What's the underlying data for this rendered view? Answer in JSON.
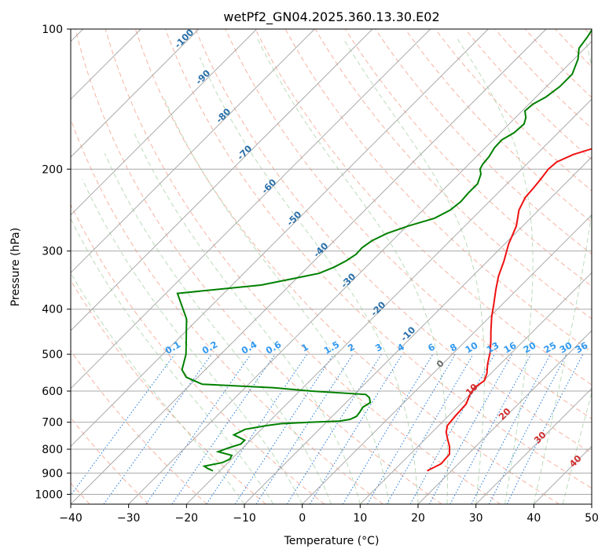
{
  "chart_data": {
    "type": "line",
    "subtype": "skew-T log-P diagram",
    "title": "wetPf2_GN04.2025.360.13.30.E02",
    "xlabel": "Temperature (°C)",
    "ylabel": "Pressure (hPa)",
    "xlim": [
      -40,
      50
    ],
    "ylim": [
      1050,
      100
    ],
    "y_scale": "log",
    "x_ticks": [
      -40,
      -30,
      -20,
      -10,
      0,
      10,
      20,
      30,
      40,
      50
    ],
    "y_ticks": [
      100,
      200,
      300,
      400,
      500,
      600,
      700,
      800,
      900,
      1000
    ],
    "grid": true,
    "series": [
      {
        "kind": "temperature",
        "color": "#ee1111",
        "points": [
          [
            15.8,
            890
          ],
          [
            17.0,
            860
          ],
          [
            16.8,
            820
          ],
          [
            15.5,
            790
          ],
          [
            13.8,
            760
          ],
          [
            12.4,
            735
          ],
          [
            11.5,
            712
          ],
          [
            11.2,
            680
          ],
          [
            11.0,
            640
          ],
          [
            10.0,
            610
          ],
          [
            9.6,
            590
          ],
          [
            10.1,
            570
          ],
          [
            9.3,
            550
          ],
          [
            7.8,
            525
          ],
          [
            6.2,
            495
          ],
          [
            4.5,
            470
          ],
          [
            2.6,
            445
          ],
          [
            0.3,
            415
          ],
          [
            -1.5,
            390
          ],
          [
            -3.5,
            365
          ],
          [
            -5.5,
            340
          ],
          [
            -7.2,
            315
          ],
          [
            -9.3,
            290
          ],
          [
            -11.1,
            265
          ],
          [
            -13.4,
            245
          ],
          [
            -14.5,
            230
          ],
          [
            -14.7,
            220
          ],
          [
            -15.0,
            210
          ],
          [
            -15.4,
            200
          ],
          [
            -15.2,
            193
          ],
          [
            -13.6,
            186
          ],
          [
            -10.2,
            178
          ],
          [
            -5.0,
            170
          ],
          [
            -1.0,
            163
          ],
          [
            2.0,
            156
          ],
          [
            3.8,
            148
          ],
          [
            5.0,
            140
          ],
          [
            6.4,
            133
          ],
          [
            8.3,
            126
          ],
          [
            11.0,
            119
          ],
          [
            14.3,
            113
          ],
          [
            17.0,
            108
          ],
          [
            19.0,
            104
          ],
          [
            20.5,
            100
          ]
        ]
      },
      {
        "kind": "dewpoint",
        "color": "#008000",
        "points": [
          [
            -21.2,
            890
          ],
          [
            -22.5,
            880
          ],
          [
            -23.5,
            870
          ],
          [
            -21.0,
            855
          ],
          [
            -20.3,
            840
          ],
          [
            -20.6,
            825
          ],
          [
            -23.6,
            810
          ],
          [
            -22.5,
            795
          ],
          [
            -21.0,
            780
          ],
          [
            -21.0,
            765
          ],
          [
            -23.8,
            745
          ],
          [
            -22.8,
            725
          ],
          [
            -19.8,
            712
          ],
          [
            -17.6,
            705
          ],
          [
            -13.0,
            700
          ],
          [
            -8.0,
            696
          ],
          [
            -6.4,
            690
          ],
          [
            -5.8,
            680
          ],
          [
            -6.0,
            665
          ],
          [
            -6.3,
            650
          ],
          [
            -5.8,
            635
          ],
          [
            -6.8,
            620
          ],
          [
            -8.0,
            610
          ],
          [
            -18.0,
            600
          ],
          [
            -25.0,
            590
          ],
          [
            -38.0,
            580
          ],
          [
            -42.0,
            560
          ],
          [
            -44.0,
            540
          ],
          [
            -46.0,
            500
          ],
          [
            -52.0,
            420
          ],
          [
            -58.0,
            370
          ],
          [
            -45.0,
            355
          ],
          [
            -41.0,
            345
          ],
          [
            -37.0,
            335
          ],
          [
            -35.5,
            325
          ],
          [
            -34.5,
            315
          ],
          [
            -33.9,
            305
          ],
          [
            -34.0,
            295
          ],
          [
            -33.5,
            285
          ],
          [
            -32.2,
            275
          ],
          [
            -29.8,
            265
          ],
          [
            -26.6,
            255
          ],
          [
            -25.3,
            245
          ],
          [
            -24.9,
            235
          ],
          [
            -25.1,
            225
          ],
          [
            -25.1,
            215
          ],
          [
            -26.2,
            205
          ],
          [
            -27.2,
            200
          ],
          [
            -27.6,
            195
          ],
          [
            -27.8,
            188
          ],
          [
            -28.4,
            180
          ],
          [
            -28.5,
            173
          ],
          [
            -27.6,
            167
          ],
          [
            -27.4,
            160
          ],
          [
            -28.2,
            155
          ],
          [
            -29.5,
            150
          ],
          [
            -29.3,
            145
          ],
          [
            -28.3,
            140
          ],
          [
            -27.7,
            133
          ],
          [
            -27.7,
            125
          ],
          [
            -29.3,
            116
          ],
          [
            -31.0,
            110
          ],
          [
            -31.5,
            104
          ],
          [
            -32.0,
            100
          ]
        ]
      }
    ],
    "dry_adiabat_labels": [
      "-100",
      "-90",
      "-80",
      "-70",
      "-60",
      "-50",
      "-40",
      "-30",
      "-20",
      "-10"
    ],
    "moist_adiabat_labels": [
      "0",
      "10",
      "20",
      "30",
      "40"
    ],
    "mixing_ratio_labels": [
      "0.1",
      "0.2",
      "0.4",
      "0.6",
      "1",
      "1.5",
      "2",
      "3",
      "4",
      "6",
      "8",
      "10",
      "13",
      "16",
      "20",
      "25",
      "30",
      "36"
    ],
    "colors": {
      "temperature": "#ee1111",
      "dewpoint": "#008000",
      "dry_adiabat_labels": "#2a6fa8",
      "mixing_ratio_labels": "#3399ee",
      "moist_adiabat_labels": "#d03030",
      "moist_adiabat_zero_label": "#707070",
      "isotherms": "#aaaaaa",
      "dry_adiabats": "#f4a08a",
      "moist_adiabats": "#8cc58c",
      "mixing_ratio_lines": "#1e78d8",
      "outer_dry_adiabats": "#cfa67a"
    }
  }
}
